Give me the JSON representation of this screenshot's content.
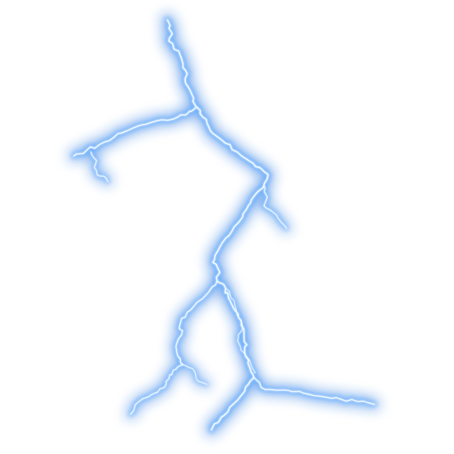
{
  "image": {
    "subject": "lightning-bolt",
    "background_color": "#ffffff",
    "glow_color": "#5aa8ff",
    "halo_color": "#1f6fe0",
    "core_color": "#ffffff",
    "inner_color": "#cfe6ff"
  }
}
